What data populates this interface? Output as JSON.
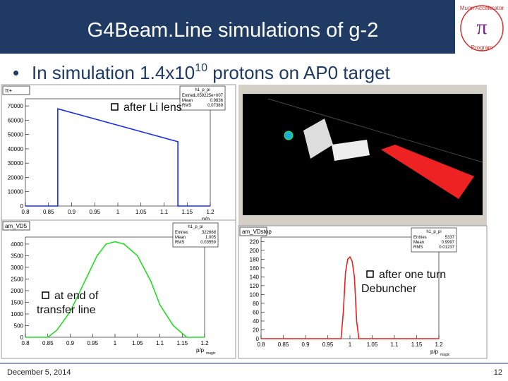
{
  "header": {
    "title": "G4Beam.Line simulations of g-2",
    "logo": {
      "symbol": "π",
      "line1": "Muon Accelerator",
      "line2": "Program"
    }
  },
  "bullet": {
    "text": "In simulation 1.4x10",
    "sup": "10",
    "rest": " protons on AP0 target"
  },
  "panels": [
    {
      "name": "π+",
      "stats_title": "h1_p_pi",
      "stats": [
        [
          "Entries",
          "1.059225e+007"
        ],
        [
          "Mean",
          0.9836
        ],
        [
          "RMS",
          0.07389
        ]
      ],
      "annotation": [
        "after Li lens"
      ],
      "xlabel": "p/p",
      "xlabel_sub": "magic",
      "color": "#1a2ee8",
      "xlim": [
        0.8,
        1.2
      ],
      "ylim": [
        0,
        75000
      ],
      "xticks": [
        0.8,
        0.85,
        0.9,
        0.95,
        1,
        1.05,
        1.1,
        1.15,
        1.2
      ],
      "yticks": [
        0,
        10000,
        20000,
        30000,
        40000,
        50000,
        60000,
        70000
      ],
      "x": [
        0.8,
        0.87,
        0.87,
        1.13,
        1.13,
        1.2
      ],
      "y": [
        0,
        0,
        68000,
        45000,
        0,
        0
      ]
    },
    {
      "name": "am_VD5",
      "stats_title": "h1_p_pi",
      "stats": [
        [
          "Entries",
          322668
        ],
        [
          "Mean",
          1.005
        ],
        [
          "RMS",
          0.03559
        ]
      ],
      "annotation": [
        "at end of",
        "transfer line"
      ],
      "xlabel": "p/p",
      "xlabel_sub": "magic",
      "color": "#22dd22",
      "xlim": [
        0.8,
        1.2
      ],
      "ylim": [
        0,
        4300
      ],
      "xticks": [
        0.8,
        0.85,
        0.9,
        0.95,
        1,
        1.05,
        1.1,
        1.15,
        1.2
      ],
      "yticks": [
        0,
        500,
        1000,
        1500,
        2000,
        2500,
        3000,
        3500,
        4000
      ],
      "x": [
        0.8,
        0.85,
        0.87,
        0.9,
        0.93,
        0.96,
        0.98,
        1.0,
        1.02,
        1.05,
        1.08,
        1.1,
        1.13,
        1.16,
        1.2
      ],
      "y": [
        0,
        0,
        300,
        1100,
        2300,
        3500,
        4000,
        4100,
        4000,
        3500,
        2400,
        1400,
        500,
        0,
        0
      ]
    },
    {
      "name": "am_VDstop",
      "stats_title": "h1_p_pi",
      "stats": [
        [
          "Entries",
          5337
        ],
        [
          "Mean",
          0.9997
        ],
        [
          "RMS",
          0.01237
        ]
      ],
      "annotation": [
        "after one turn",
        "Debuncher"
      ],
      "xlabel": "p/p",
      "xlabel_sub": "magic",
      "color": "#e82020",
      "xlim": [
        0.8,
        1.2
      ],
      "ylim": [
        0,
        230
      ],
      "xticks": [
        0.8,
        0.85,
        0.9,
        0.95,
        1,
        1.05,
        1.1,
        1.15,
        1.2
      ],
      "yticks": [
        0,
        20,
        40,
        60,
        80,
        100,
        120,
        140,
        160,
        180,
        200,
        220
      ],
      "x": [
        0.8,
        0.98,
        0.985,
        0.99,
        0.995,
        1.0,
        1.005,
        1.01,
        1.015,
        1.02,
        1.2
      ],
      "y": [
        0,
        0,
        60,
        150,
        180,
        185,
        175,
        140,
        40,
        0,
        0
      ]
    }
  ],
  "footer": {
    "date": "December 5, 2014",
    "page": "12"
  }
}
